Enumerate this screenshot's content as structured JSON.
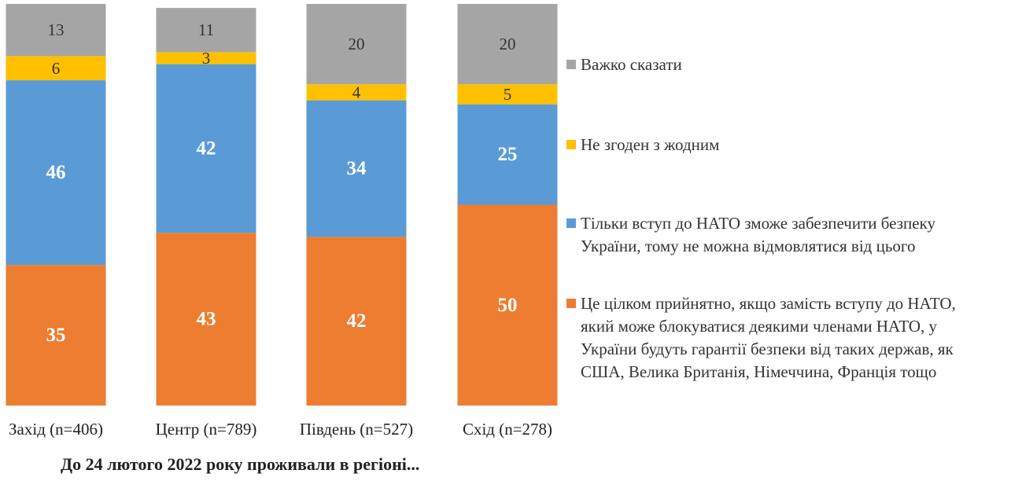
{
  "chart_data": {
    "type": "bar",
    "stacked": true,
    "categories": [
      "Захід (n=406)",
      "Центр (n=789)",
      "Південь (n=527)",
      "Схід (n=278)"
    ],
    "series": [
      {
        "name": "Це цілком прийнятно, якщо замість вступу до НАТО, який може блокуватися деякими членами НАТО, у України будуть гарантії безпеки від таких держав, як США, Велика Британія, Німеччина, Франція тощо",
        "color": "#ED7D31",
        "values": [
          35,
          43,
          42,
          50
        ]
      },
      {
        "name": "Тільки вступ до НАТО зможе забезпечити безпеку України, тому не можна відмовлятися від цього",
        "color": "#5B9BD5",
        "values": [
          46,
          42,
          34,
          25
        ]
      },
      {
        "name": "Не згоден з жодним",
        "color": "#FFC000",
        "values": [
          6,
          3,
          4,
          5
        ]
      },
      {
        "name": "Важко сказати",
        "color": "#A5A5A5",
        "values": [
          13,
          11,
          20,
          20
        ]
      }
    ],
    "legend_order": [
      3,
      2,
      1,
      0
    ],
    "legend_position": "right",
    "xlabel": "До 24 лютого 2022 року проживали в регіоні...",
    "ylim": [
      0,
      100
    ],
    "grid": false
  }
}
